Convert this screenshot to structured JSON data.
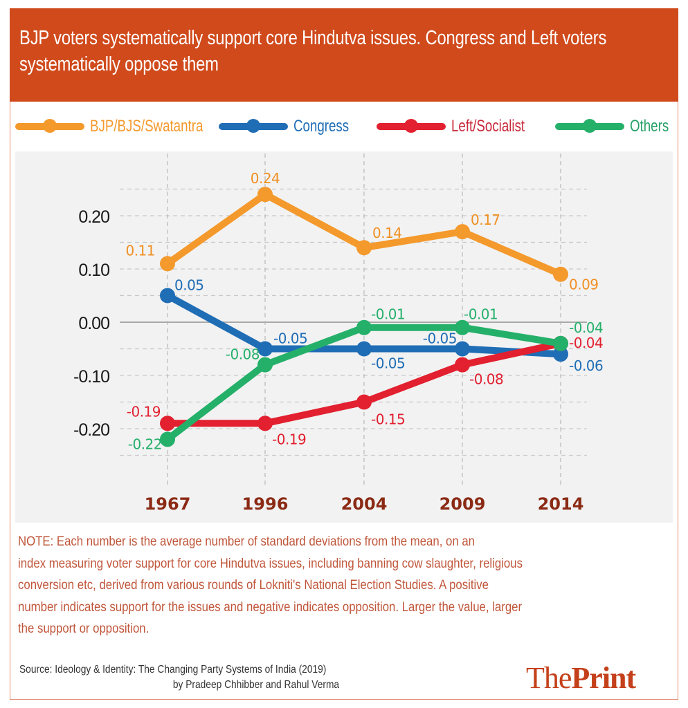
{
  "header": {
    "title": "BJP voters systematically support core Hindutva issues. Congress and Left voters systematically oppose them"
  },
  "colors": {
    "header_bg": "#d04a1c",
    "bjp": "#f4992c",
    "congress": "#1f6db5",
    "left": "#e2202f",
    "others": "#25b06a",
    "year_label": "#8b2a14",
    "note_text": "#c0563a",
    "brand": "#c4401a"
  },
  "chart_data": {
    "type": "line",
    "title": "BJP voters systematically support core Hindutva issues. Congress and Left voters systematically oppose them",
    "xlabel": "",
    "ylabel": "",
    "x": [
      "1967",
      "1996",
      "2004",
      "2009",
      "2014"
    ],
    "ylim": [
      -0.25,
      0.25
    ],
    "yticks": [
      0.2,
      0.1,
      0.0,
      -0.1,
      -0.2
    ],
    "ytick_labels": [
      "0.20",
      "0.10",
      "0.00",
      "-0.10",
      "-0.20"
    ],
    "grid": true,
    "legend_position": "top",
    "series": [
      {
        "name": "BJP/BJS/Swatantra",
        "key": "bjp",
        "values": [
          0.11,
          0.24,
          0.14,
          0.17,
          0.09
        ],
        "labels": [
          "0.11",
          "0.24",
          "0.14",
          "0.17",
          "0.09"
        ]
      },
      {
        "name": "Congress",
        "key": "congress",
        "values": [
          0.05,
          -0.05,
          -0.05,
          -0.05,
          -0.06
        ],
        "labels": [
          "0.05",
          "-0.05",
          "-0.05",
          "-0.05",
          "-0.06"
        ]
      },
      {
        "name": "Left/Socialist",
        "key": "left",
        "values": [
          -0.19,
          -0.19,
          -0.15,
          -0.08,
          -0.04
        ],
        "labels": [
          "-0.19",
          "-0.19",
          "-0.15",
          "-0.08",
          "-0.04"
        ]
      },
      {
        "name": "Others",
        "key": "others",
        "values": [
          -0.22,
          -0.08,
          -0.01,
          -0.01,
          -0.04
        ],
        "labels": [
          "-0.22",
          "-0.08",
          "-0.01",
          "-0.01",
          "-0.04"
        ]
      }
    ]
  },
  "note": "NOTE: Each number is the average number of standard deviations from the mean, on an index measuring voter support for core Hindutva issues, including banning cow slaughter, religious conversion etc, derived from various rounds of Lokniti's National Election Studies. A positive number indicates support for the issues and negative indicates opposition. Larger the value, larger the support or opposition.",
  "note_lines": [
    "NOTE: Each number is the average number of standard deviations from the mean, on an",
    "index measuring voter support for core Hindutva issues, including banning cow slaughter, religious",
    "conversion etc, derived from various rounds of Lokniti's National Election Studies. A positive",
    "number indicates support for the issues and negative indicates opposition. Larger the value, larger",
    "the support or opposition."
  ],
  "source": {
    "line1": "Source: Ideology & Identity: The Changing Party Systems of India (2019)",
    "line2": "by Pradeep Chhibber and Rahul Verma"
  },
  "brand": {
    "part1": "The",
    "part2": "Print"
  }
}
